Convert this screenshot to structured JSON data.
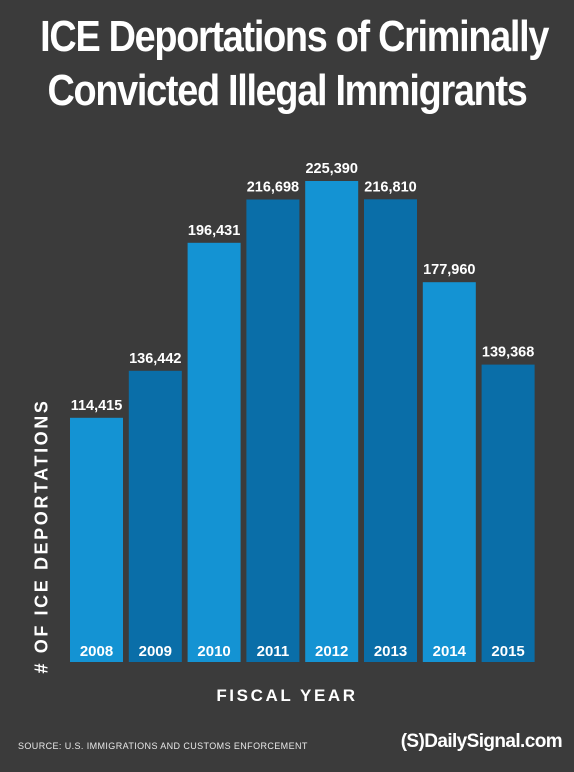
{
  "title_lines": [
    "ICE Deportations of Criminally",
    "Convicted Illegal Immigrants"
  ],
  "source": "SOURCE: U.S. IMMIGRATIONS AND CUSTOMS ENFORCEMENT",
  "brand": "(S)DailySignal.com",
  "colors": {
    "background": "#3b3b3b",
    "bar_light": "#1493d3",
    "bar_dark": "#0a6ea8",
    "text": "#ffffff"
  },
  "chart_data": {
    "type": "bar",
    "title": "ICE Deportations of Criminally Convicted Illegal Immigrants",
    "xlabel": "FISCAL YEAR",
    "ylabel": "# OF ICE DEPORTATIONS",
    "categories": [
      "2008",
      "2009",
      "2010",
      "2011",
      "2012",
      "2013",
      "2014",
      "2015"
    ],
    "values": [
      114415,
      136442,
      196431,
      216698,
      225390,
      216810,
      177960,
      139368
    ],
    "value_labels": [
      "114,415",
      "136,442",
      "196,431",
      "216,698",
      "225,390",
      "216,810",
      "177,960",
      "139,368"
    ],
    "ylim": [
      0,
      225390
    ],
    "grid": false,
    "legend": "none",
    "category_labels_inside_bars": true,
    "alternating_bar_colors": [
      "#1493d3",
      "#0a6ea8"
    ]
  }
}
